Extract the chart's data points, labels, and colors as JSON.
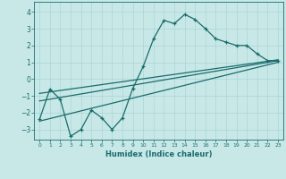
{
  "title": "",
  "xlabel": "Humidex (Indice chaleur)",
  "bg_color": "#c8e8e8",
  "line_color": "#1a6b6b",
  "xlim": [
    -0.5,
    23.5
  ],
  "ylim": [
    -3.6,
    4.6
  ],
  "xticks": [
    0,
    1,
    2,
    3,
    4,
    5,
    6,
    7,
    8,
    9,
    10,
    11,
    12,
    13,
    14,
    15,
    16,
    17,
    18,
    19,
    20,
    21,
    22,
    23
  ],
  "yticks": [
    -3,
    -2,
    -1,
    0,
    1,
    2,
    3,
    4
  ],
  "data_line": [
    [
      0,
      -2.4
    ],
    [
      1,
      -0.6
    ],
    [
      2,
      -1.2
    ],
    [
      3,
      -3.4
    ],
    [
      4,
      -3.0
    ],
    [
      5,
      -1.85
    ],
    [
      6,
      -2.3
    ],
    [
      7,
      -3.0
    ],
    [
      8,
      -2.3
    ],
    [
      9,
      -0.55
    ],
    [
      10,
      0.75
    ],
    [
      11,
      2.4
    ],
    [
      12,
      3.5
    ],
    [
      13,
      3.3
    ],
    [
      14,
      3.85
    ],
    [
      15,
      3.55
    ],
    [
      16,
      3.0
    ],
    [
      17,
      2.4
    ],
    [
      18,
      2.2
    ],
    [
      19,
      2.0
    ],
    [
      20,
      2.0
    ],
    [
      21,
      1.5
    ],
    [
      22,
      1.1
    ],
    [
      23,
      1.1
    ]
  ],
  "reg_line1": [
    [
      0,
      -0.85
    ],
    [
      23,
      1.15
    ]
  ],
  "reg_line2": [
    [
      0,
      -1.3
    ],
    [
      23,
      1.1
    ]
  ],
  "reg_line3": [
    [
      0,
      -2.5
    ],
    [
      23,
      1.0
    ]
  ],
  "grid_color": "#aad4d4",
  "font_color": "#1a6b6b"
}
